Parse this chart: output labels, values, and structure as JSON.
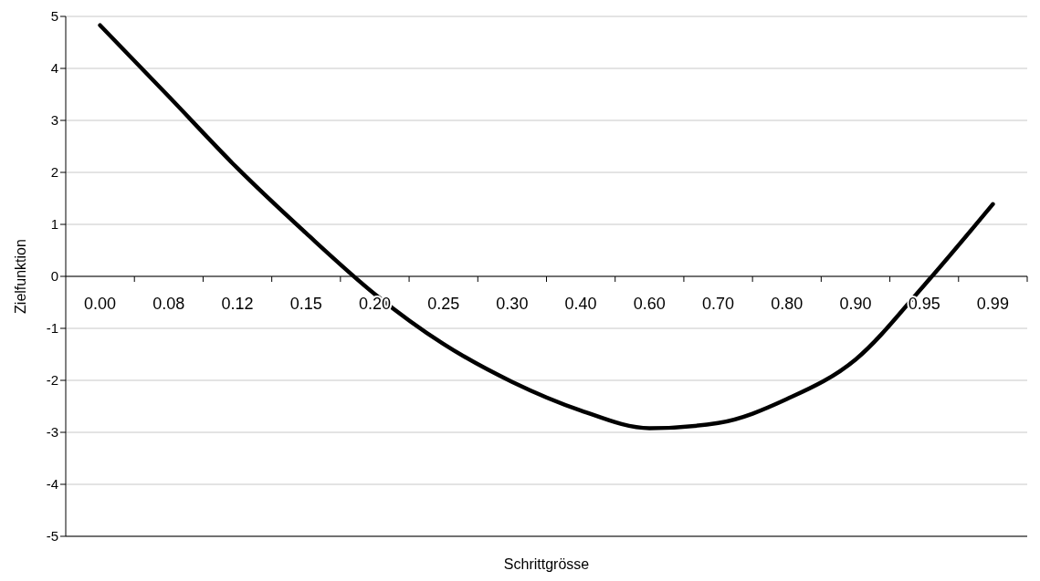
{
  "chart_data": {
    "type": "line",
    "xlabel": "Schrittgrösse",
    "ylabel": "Zielfunktion",
    "categories": [
      "0.00",
      "0.08",
      "0.12",
      "0.15",
      "0.20",
      "0.25",
      "0.30",
      "0.40",
      "0.60",
      "0.70",
      "0.80",
      "0.90",
      "0.95",
      "0.99"
    ],
    "series": [
      {
        "color": "#000000",
        "values": [
          4.83,
          3.46,
          2.08,
          0.83,
          -0.34,
          -1.3,
          -2.03,
          -2.58,
          -2.92,
          -2.82,
          -2.36,
          -1.6,
          -0.17,
          1.39
        ]
      }
    ],
    "ylim": [
      -5,
      5
    ],
    "yticks": [
      -5,
      -4,
      -3,
      -2,
      -1,
      0,
      1,
      2,
      3,
      4,
      5
    ],
    "grid": "y",
    "marker": "none",
    "line_style": "solid",
    "legend": false
  }
}
